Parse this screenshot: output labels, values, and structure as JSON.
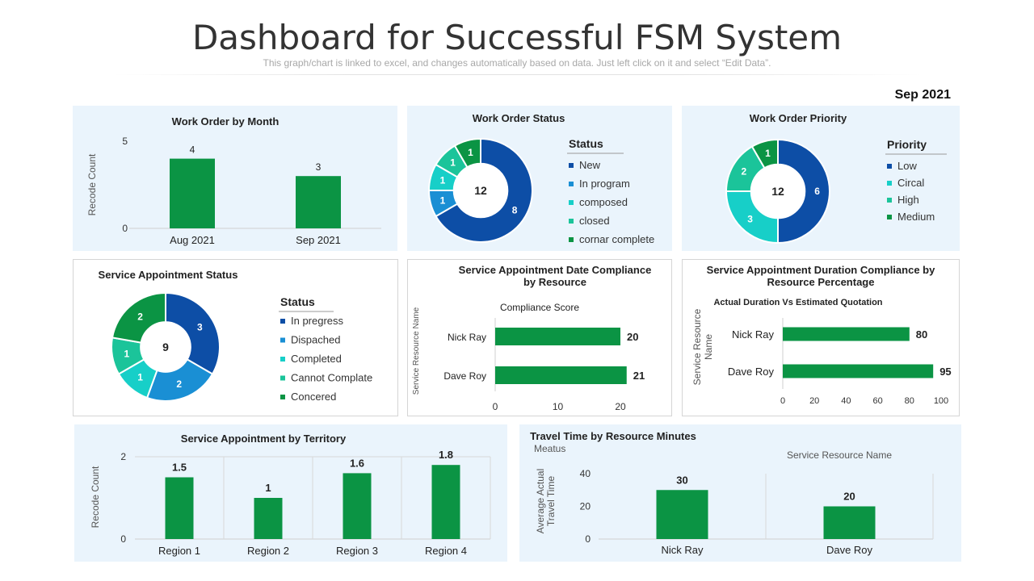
{
  "header": {
    "title": "Dashboard for Successful FSM System",
    "subtitle": "This graph/chart is linked to excel, and changes automatically based on data. Just left click on it and select “Edit Data”.",
    "date": "Sep 2021"
  },
  "colors": {
    "green": "#0b9444",
    "dark_blue": "#0d4ea6",
    "blue": "#1a8fd4",
    "teal": "#12b0b6",
    "aqua": "#17cfc8",
    "mint": "#1bc49a"
  },
  "chart_data": [
    {
      "id": "work_order_by_month",
      "type": "bar",
      "title": "Work Order by Month",
      "ylabel": "Recode Count",
      "categories": [
        "Aug 2021",
        "Sep 2021"
      ],
      "values": [
        4,
        3
      ],
      "ylim": [
        0,
        5
      ],
      "yticks": [
        "0",
        "5"
      ]
    },
    {
      "id": "work_order_status",
      "type": "pie",
      "title": "Work Order Status",
      "legend_title": "Status",
      "center_label": "12",
      "labels": [
        "New",
        "In program",
        "composed",
        "closed",
        "cornar complete"
      ],
      "values": [
        8,
        1,
        1,
        1,
        1
      ],
      "colors": [
        "#0d4ea6",
        "#1a8fd4",
        "#17cfc8",
        "#1bc49a",
        "#0b9444"
      ],
      "legend_placement": "right"
    },
    {
      "id": "work_order_priority",
      "type": "pie",
      "title": "Work Order Priority",
      "legend_title": "Priority",
      "center_label": "12",
      "labels": [
        "Low",
        "Circal",
        "High",
        "Medium"
      ],
      "values": [
        6,
        3,
        2,
        1
      ],
      "colors": [
        "#0d4ea6",
        "#17cfc8",
        "#1bc49a",
        "#0b9444"
      ],
      "legend_placement": "right"
    },
    {
      "id": "service_appointment_status",
      "type": "pie",
      "title": "Service Appointment  Status",
      "legend_title": "Status",
      "center_label": "9",
      "labels": [
        "In pregress",
        "Dispached",
        "Completed",
        "Cannot Complate",
        "Concered"
      ],
      "values": [
        3,
        2,
        1,
        1,
        2
      ],
      "colors": [
        "#0d4ea6",
        "#1a8fd4",
        "#17cfc8",
        "#1bc49a",
        "#0b9444"
      ],
      "legend_placement": "right"
    },
    {
      "id": "date_compliance",
      "type": "bar",
      "orientation": "horizontal",
      "title": "Service Appointment Date Compliance\nby Resource",
      "series_label": "Compliance  Score",
      "ylabel": "Service Resource Name",
      "categories": [
        "Nick Ray",
        "Dave Roy"
      ],
      "values": [
        20,
        21
      ],
      "xlim": [
        0,
        20
      ],
      "xticks": [
        "0",
        "10",
        "20"
      ]
    },
    {
      "id": "duration_compliance",
      "type": "bar",
      "orientation": "horizontal",
      "title": "Service Appointment Duration Compliance by\nResource Percentage",
      "series_label": "Actual Duration Vs Estimated Quotation",
      "ylabel": "Service  Resource\nName",
      "categories": [
        "Nick Ray",
        "Dave Roy"
      ],
      "values": [
        80,
        95
      ],
      "xlim": [
        0,
        100
      ],
      "xticks": [
        "0",
        "20",
        "40",
        "60",
        "80",
        "100"
      ]
    },
    {
      "id": "by_territory",
      "type": "bar",
      "title": "Service Appointment by Territory",
      "ylabel": "Recode Count",
      "categories": [
        "Region 1",
        "Region 2",
        "Region 3",
        "Region 4"
      ],
      "values": [
        1.5,
        1,
        1.6,
        1.8
      ],
      "ylim": [
        0,
        2
      ],
      "yticks": [
        "0",
        "2"
      ]
    },
    {
      "id": "travel_time",
      "type": "bar",
      "title": "Travel Time by Resource  Minutes",
      "subtitle": "Meatus",
      "series_label": "Service  Resource Name",
      "ylabel": "Average  Actual\nTravel Time",
      "categories": [
        "Nick Ray",
        "Dave Roy"
      ],
      "values": [
        30,
        20
      ],
      "ylim": [
        0,
        40
      ],
      "yticks": [
        "0",
        "20",
        "40"
      ]
    }
  ]
}
